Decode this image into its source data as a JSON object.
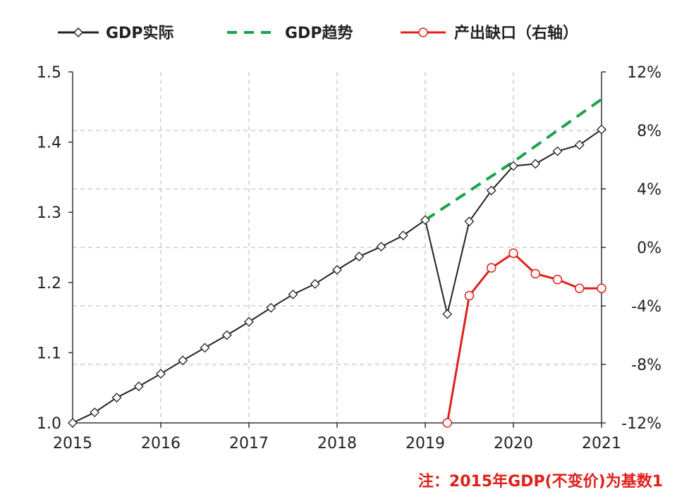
{
  "chart_data": {
    "type": "line",
    "legend": {
      "placement": "top",
      "items": [
        {
          "key": "actual",
          "label": "GDP实际"
        },
        {
          "key": "trend",
          "label": "GDP趋势"
        },
        {
          "key": "gap",
          "label": "产出缺口（右轴）"
        }
      ]
    },
    "note": "注：2015年GDP(不变价)为基数1",
    "x_ticks": [
      "2015",
      "2016",
      "2017",
      "2018",
      "2019",
      "2020",
      "2021"
    ],
    "y_left": {
      "min": 1.0,
      "max": 1.5,
      "ticks": [
        "1.0",
        "1.1",
        "1.2",
        "1.3",
        "1.4",
        "1.5"
      ]
    },
    "y_right": {
      "min": -12,
      "max": 12,
      "ticks": [
        "12%",
        "8%",
        "4%",
        "0%",
        "-4%",
        "-8%",
        "-12%"
      ]
    },
    "grid": {
      "horizontal": true,
      "vertical": true,
      "style": "dashed"
    },
    "colors": {
      "actual": "#222222",
      "trend": "#1aa34a",
      "gap": "#e0201b",
      "note": "#e0201b"
    },
    "series": [
      {
        "key": "actual",
        "axis": "left",
        "x": [
          2015.0,
          2015.25,
          2015.5,
          2015.75,
          2016.0,
          2016.25,
          2016.5,
          2016.75,
          2017.0,
          2017.25,
          2017.5,
          2017.75,
          2018.0,
          2018.25,
          2018.5,
          2018.75,
          2019.0,
          2019.25,
          2019.5,
          2019.75,
          2020.0,
          2020.25,
          2020.5,
          2020.75,
          2021.0
        ],
        "values": [
          1.0,
          1.015,
          1.036,
          1.052,
          1.07,
          1.089,
          1.107,
          1.125,
          1.144,
          1.164,
          1.183,
          1.198,
          1.218,
          1.237,
          1.251,
          1.267,
          1.289,
          1.155,
          1.287,
          1.331,
          1.366,
          1.369,
          1.387,
          1.396,
          1.418
        ]
      },
      {
        "key": "trend",
        "axis": "left",
        "x": [
          2019.0,
          2020.0,
          2021.0
        ],
        "values": [
          1.289,
          1.372,
          1.461
        ]
      },
      {
        "key": "gap",
        "axis": "right",
        "x": [
          2019.25,
          2019.5,
          2019.75,
          2020.0,
          2020.25,
          2020.5,
          2020.75,
          2021.0
        ],
        "values": [
          -12.0,
          -3.3,
          -1.4,
          -0.4,
          -1.8,
          -2.2,
          -2.8,
          -2.8
        ]
      }
    ]
  }
}
